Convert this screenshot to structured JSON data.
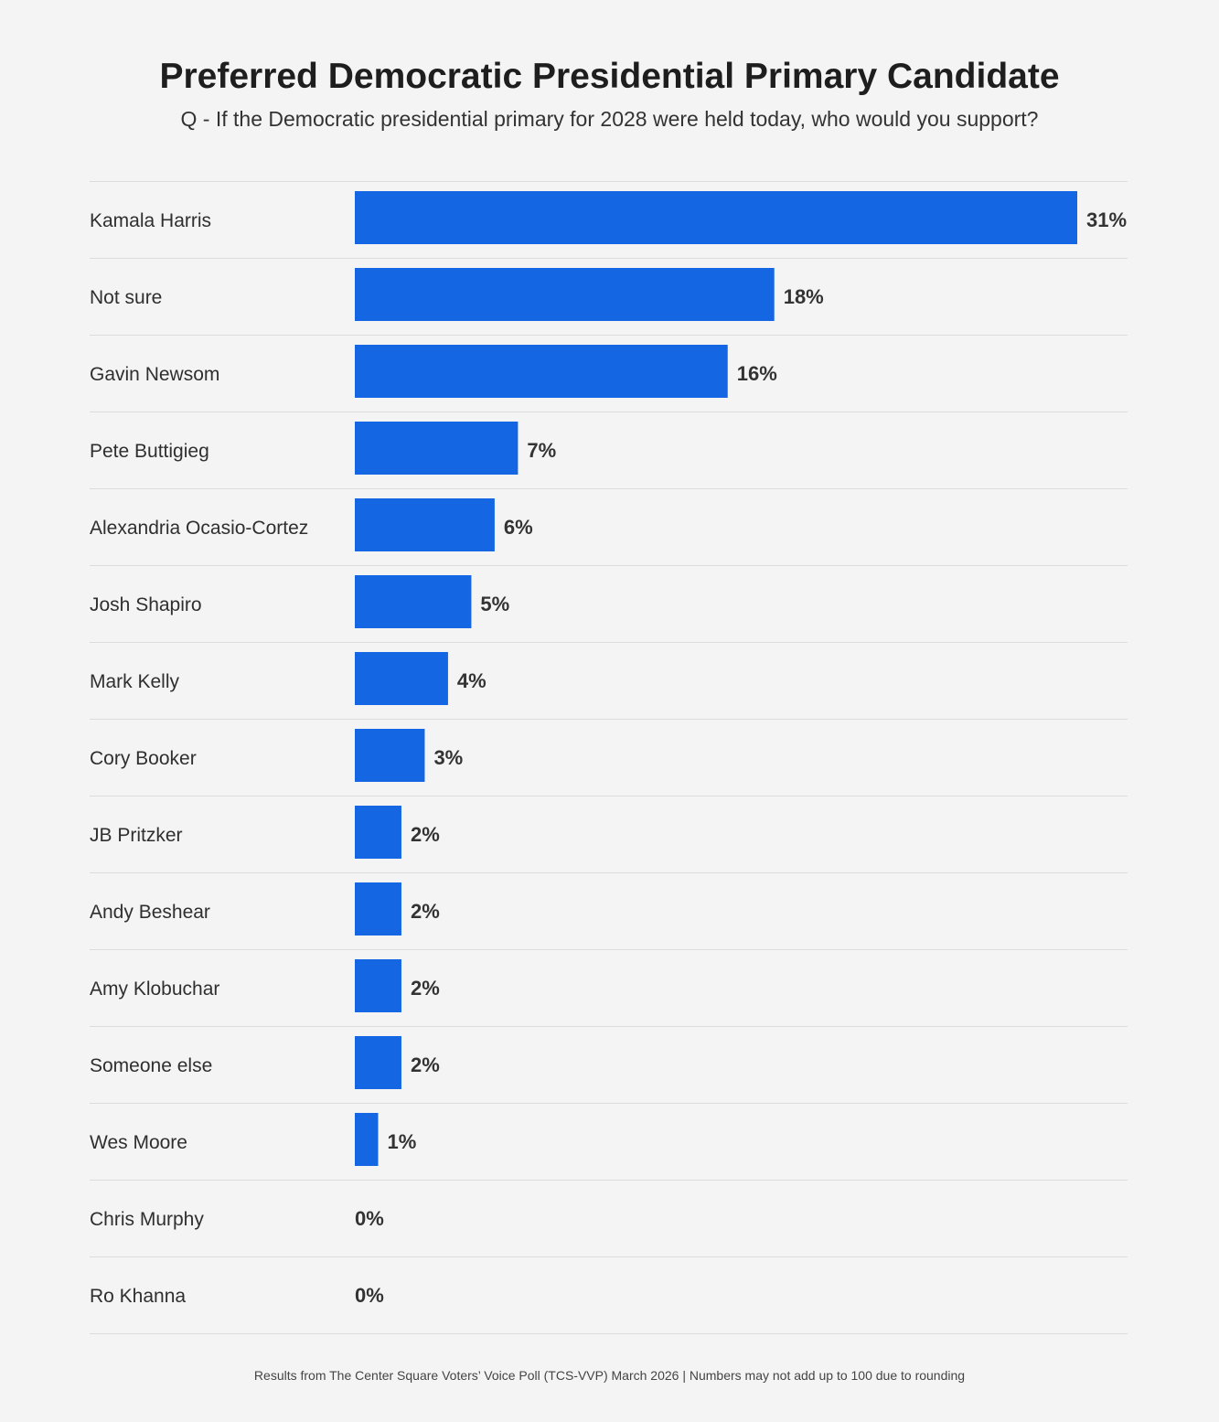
{
  "chart_data": {
    "type": "bar",
    "orientation": "horizontal",
    "title": "Preferred Democratic Presidential Primary Candidate",
    "subtitle": "Q - If the Democratic presidential primary for 2028 were held today, who would you support?",
    "categories": [
      "Kamala Harris",
      "Not sure",
      "Gavin Newsom",
      "Pete Buttigieg",
      "Alexandria Ocasio-Cortez",
      "Josh Shapiro",
      "Mark Kelly",
      "Cory Booker",
      "JB Pritzker",
      "Andy Beshear",
      "Amy Klobuchar",
      "Someone else",
      "Wes Moore",
      "Chris Murphy",
      "Ro Khanna"
    ],
    "values": [
      31,
      18,
      16,
      7,
      6,
      5,
      4,
      3,
      2,
      2,
      2,
      2,
      1,
      0,
      0
    ],
    "value_labels": [
      "31%",
      "18%",
      "16%",
      "7%",
      "6%",
      "5%",
      "4%",
      "3%",
      "2%",
      "2%",
      "2%",
      "2%",
      "1%",
      "0%",
      "0%"
    ],
    "unit": "%",
    "bar_color": "#1566e3",
    "grid": false,
    "legend": "none"
  },
  "footer": "Results from The Center Square Voters’ Voice Poll (TCS-VVP) March 2026 | Numbers may not add up to 100 due to rounding"
}
